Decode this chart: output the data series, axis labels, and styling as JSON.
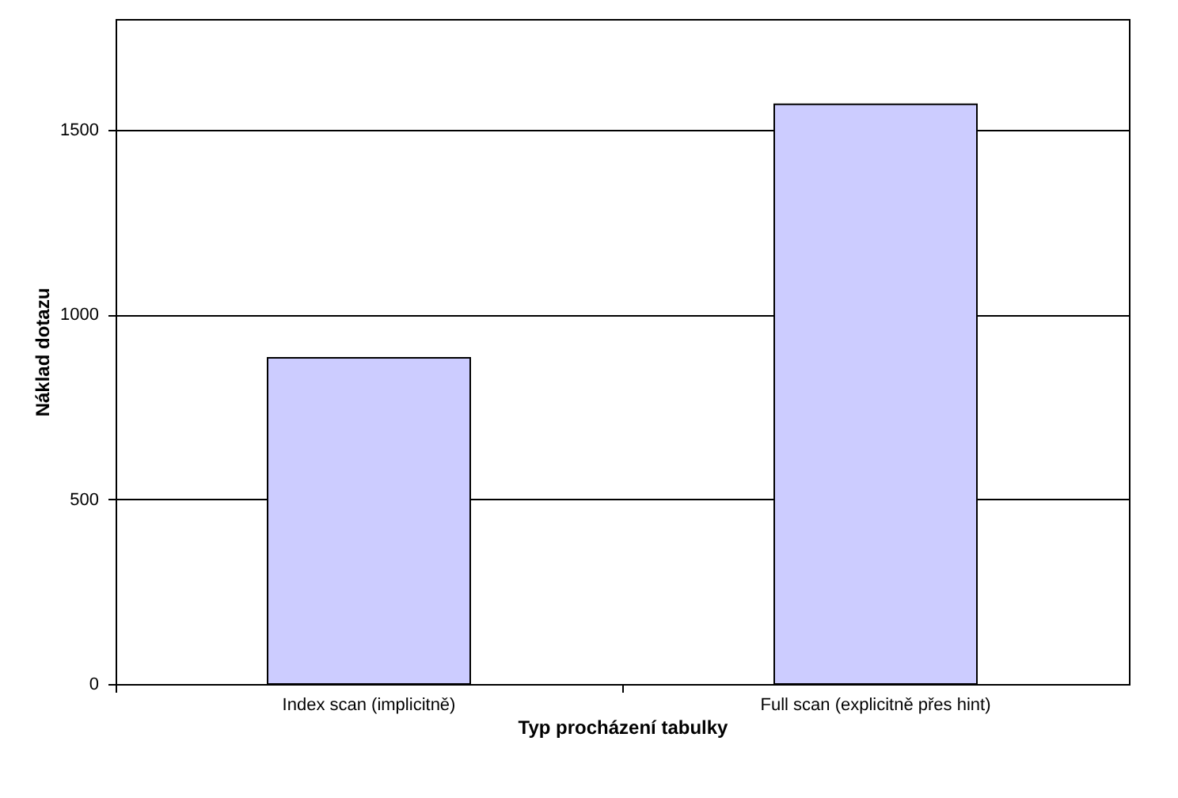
{
  "chart_data": {
    "type": "bar",
    "xlabel": "Typ procházení tabulky",
    "ylabel": "Náklad dotazu",
    "categories": [
      "Index scan (implicitně)",
      "Full scan (explicitně přes hint)"
    ],
    "values": [
      883,
      1569
    ],
    "color": "#ccccff",
    "ylim": [
      0,
      1800
    ],
    "yticks": [
      0,
      500,
      1000,
      1500
    ],
    "grid": "y"
  }
}
